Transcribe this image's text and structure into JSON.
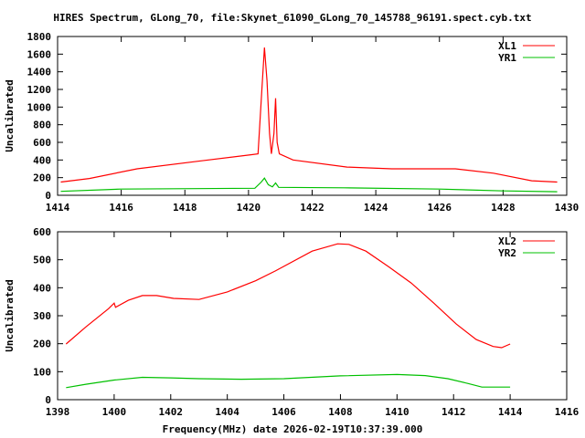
{
  "title": "HIRES Spectrum, GLong_70, file:Skynet_61090_GLong_70_145788_96191.spect.cyb.txt",
  "xlabel": "Frequency(MHz) date 2026-02-19T10:37:39.000",
  "chart_data": [
    {
      "type": "line",
      "ylabel": "Uncalibrated",
      "xlim": [
        1414,
        1430
      ],
      "ylim": [
        0,
        1800
      ],
      "xticks": [
        1414,
        1416,
        1418,
        1420,
        1422,
        1424,
        1426,
        1428,
        1430
      ],
      "yticks": [
        0,
        200,
        400,
        600,
        800,
        1000,
        1200,
        1400,
        1600,
        1800
      ],
      "legend": "top-right",
      "series": [
        {
          "name": "XL1",
          "color": "#ff0000",
          "points": [
            [
              1414.1,
              150
            ],
            [
              1415,
              190
            ],
            [
              1416.5,
              300
            ],
            [
              1418.5,
              390
            ],
            [
              1420.1,
              460
            ],
            [
              1420.3,
              470
            ],
            [
              1420.42,
              1200
            ],
            [
              1420.5,
              1675
            ],
            [
              1420.58,
              1300
            ],
            [
              1420.66,
              700
            ],
            [
              1420.72,
              470
            ],
            [
              1420.8,
              700
            ],
            [
              1420.85,
              1100
            ],
            [
              1420.9,
              600
            ],
            [
              1420.97,
              470
            ],
            [
              1421.4,
              400
            ],
            [
              1423.1,
              320
            ],
            [
              1424.5,
              300
            ],
            [
              1426.5,
              300
            ],
            [
              1427.7,
              250
            ],
            [
              1428.9,
              165
            ],
            [
              1429.7,
              150
            ]
          ]
        },
        {
          "name": "YR1",
          "color": "#00c000",
          "points": [
            [
              1414.1,
              45
            ],
            [
              1416,
              70
            ],
            [
              1420.2,
              80
            ],
            [
              1420.4,
              150
            ],
            [
              1420.5,
              195
            ],
            [
              1420.62,
              120
            ],
            [
              1420.75,
              95
            ],
            [
              1420.85,
              140
            ],
            [
              1420.95,
              90
            ],
            [
              1423,
              85
            ],
            [
              1426,
              70
            ],
            [
              1428,
              50
            ],
            [
              1429.7,
              40
            ]
          ]
        }
      ]
    },
    {
      "type": "line",
      "ylabel": "Uncalibrated",
      "xlim": [
        1398,
        1416
      ],
      "ylim": [
        0,
        600
      ],
      "xticks": [
        1398,
        1400,
        1402,
        1404,
        1406,
        1408,
        1410,
        1412,
        1414,
        1416
      ],
      "yticks": [
        0,
        100,
        200,
        300,
        400,
        500,
        600
      ],
      "legend": "top-right",
      "series": [
        {
          "name": "XL2",
          "color": "#ff0000",
          "points": [
            [
              1398.3,
              199
            ],
            [
              1399,
              260
            ],
            [
              1399.8,
              325
            ],
            [
              1400,
              345
            ],
            [
              1400.05,
              330
            ],
            [
              1400.5,
              355
            ],
            [
              1401,
              372
            ],
            [
              1401.5,
              372
            ],
            [
              1402.1,
              362
            ],
            [
              1403,
              358
            ],
            [
              1404,
              385
            ],
            [
              1405,
              425
            ],
            [
              1405.7,
              460
            ],
            [
              1407,
              531
            ],
            [
              1407.9,
              557
            ],
            [
              1408.3,
              555
            ],
            [
              1408.9,
              531
            ],
            [
              1409.7,
              475
            ],
            [
              1410.5,
              417
            ],
            [
              1411.3,
              345
            ],
            [
              1412.1,
              270
            ],
            [
              1412.8,
              215
            ],
            [
              1413.4,
              190
            ],
            [
              1413.7,
              186
            ],
            [
              1414,
              199
            ]
          ]
        },
        {
          "name": "YR2",
          "color": "#00c000",
          "points": [
            [
              1398.3,
              43
            ],
            [
              1399,
              55
            ],
            [
              1400,
              70
            ],
            [
              1401,
              80
            ],
            [
              1402,
              78
            ],
            [
              1403,
              75
            ],
            [
              1404.5,
              73
            ],
            [
              1406,
              75
            ],
            [
              1408,
              85
            ],
            [
              1410,
              90
            ],
            [
              1411,
              86
            ],
            [
              1411.8,
              75
            ],
            [
              1412.5,
              58
            ],
            [
              1413,
              45
            ],
            [
              1414,
              45
            ]
          ]
        }
      ]
    }
  ]
}
